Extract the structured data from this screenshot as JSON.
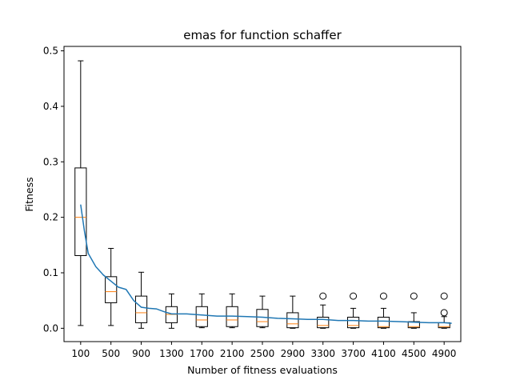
{
  "chart_data": {
    "type": "box",
    "title": "emas for function schaffer",
    "xlabel": "Number of fitness evaluations",
    "ylabel": "Fitness",
    "ylim": [
      -0.024,
      0.508
    ],
    "yticks": [
      0.0,
      0.1,
      0.2,
      0.3,
      0.4,
      0.5
    ],
    "ytick_labels": [
      "0.0",
      "0.1",
      "0.2",
      "0.3",
      "0.4",
      "0.5"
    ],
    "grid": false,
    "categories": [
      "100",
      "500",
      "900",
      "1300",
      "1700",
      "2100",
      "2500",
      "2900",
      "3300",
      "3700",
      "4100",
      "4500",
      "4900"
    ],
    "boxes": [
      {
        "x": 100,
        "whisker_low": 0.005,
        "q1": 0.131,
        "median": 0.2,
        "q3": 0.289,
        "whisker_high": 0.482,
        "outliers": []
      },
      {
        "x": 500,
        "whisker_low": 0.005,
        "q1": 0.046,
        "median": 0.066,
        "q3": 0.093,
        "whisker_high": 0.144,
        "outliers": []
      },
      {
        "x": 900,
        "whisker_low": 0.0,
        "q1": 0.01,
        "median": 0.028,
        "q3": 0.058,
        "whisker_high": 0.101,
        "outliers": []
      },
      {
        "x": 1300,
        "whisker_low": 0.0,
        "q1": 0.01,
        "median": 0.025,
        "q3": 0.039,
        "whisker_high": 0.062,
        "outliers": []
      },
      {
        "x": 1700,
        "whisker_low": 0.001,
        "q1": 0.003,
        "median": 0.015,
        "q3": 0.039,
        "whisker_high": 0.062,
        "outliers": []
      },
      {
        "x": 2100,
        "whisker_low": 0.001,
        "q1": 0.003,
        "median": 0.015,
        "q3": 0.039,
        "whisker_high": 0.062,
        "outliers": []
      },
      {
        "x": 2500,
        "whisker_low": 0.001,
        "q1": 0.003,
        "median": 0.012,
        "q3": 0.034,
        "whisker_high": 0.058,
        "outliers": []
      },
      {
        "x": 2900,
        "whisker_low": 0.0,
        "q1": 0.001,
        "median": 0.008,
        "q3": 0.028,
        "whisker_high": 0.058,
        "outliers": []
      },
      {
        "x": 3300,
        "whisker_low": 0.0,
        "q1": 0.001,
        "median": 0.005,
        "q3": 0.02,
        "whisker_high": 0.042,
        "outliers": [
          0.058
        ]
      },
      {
        "x": 3700,
        "whisker_low": 0.0,
        "q1": 0.001,
        "median": 0.005,
        "q3": 0.02,
        "whisker_high": 0.036,
        "outliers": [
          0.058
        ]
      },
      {
        "x": 4100,
        "whisker_low": 0.0,
        "q1": 0.001,
        "median": 0.003,
        "q3": 0.02,
        "whisker_high": 0.036,
        "outliers": [
          0.058
        ]
      },
      {
        "x": 4500,
        "whisker_low": 0.0,
        "q1": 0.001,
        "median": 0.003,
        "q3": 0.012,
        "whisker_high": 0.028,
        "outliers": [
          0.058
        ]
      },
      {
        "x": 4900,
        "whisker_low": 0.0,
        "q1": 0.001,
        "median": 0.003,
        "q3": 0.01,
        "whisker_high": 0.021,
        "outliers": [
          0.028,
          0.058
        ]
      }
    ],
    "mean_line": {
      "x": [
        100,
        150,
        200,
        300,
        400,
        500,
        600,
        700,
        800,
        900,
        1000,
        1100,
        1200,
        1300,
        1500,
        1700,
        1900,
        2100,
        2300,
        2500,
        2700,
        2900,
        3100,
        3300,
        3500,
        3700,
        3900,
        4100,
        4300,
        4500,
        4700,
        4900,
        5000
      ],
      "y": [
        0.223,
        0.175,
        0.135,
        0.111,
        0.096,
        0.085,
        0.074,
        0.07,
        0.05,
        0.038,
        0.036,
        0.035,
        0.03,
        0.026,
        0.026,
        0.024,
        0.022,
        0.022,
        0.021,
        0.02,
        0.018,
        0.017,
        0.016,
        0.016,
        0.014,
        0.014,
        0.013,
        0.013,
        0.012,
        0.011,
        0.01,
        0.01,
        0.009
      ]
    },
    "colors": {
      "box": "#000000",
      "median": "#ff7f0e",
      "mean_line": "#1f77b4"
    }
  }
}
